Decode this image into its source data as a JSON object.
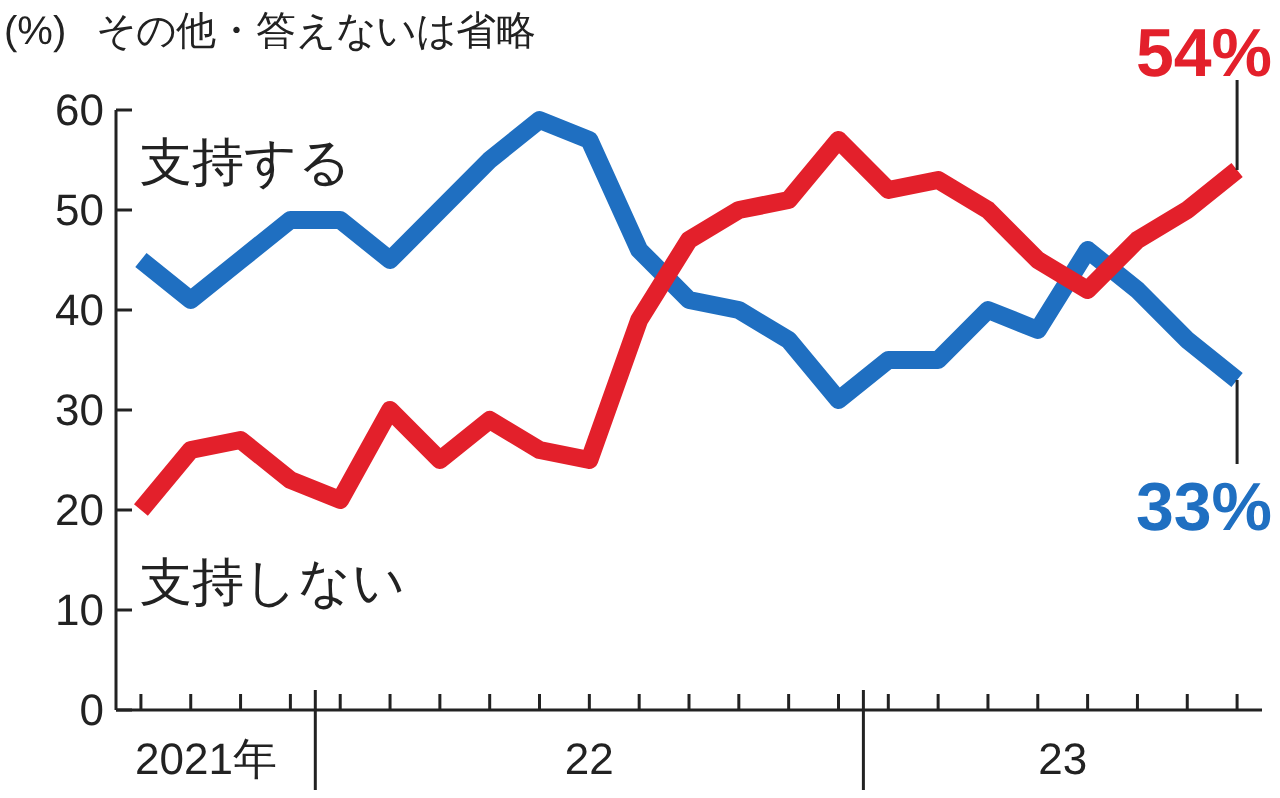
{
  "chart_data": {
    "type": "line",
    "ylabel": "(%)",
    "annotations": [
      "その他・答えないは省略",
      "2021年",
      "22",
      "23",
      "54%",
      "33%"
    ],
    "categories": [
      null,
      null,
      null,
      null,
      null,
      null,
      null,
      null,
      null,
      null,
      null,
      null,
      null,
      null,
      null,
      null,
      null,
      null,
      null,
      null,
      null,
      null,
      null
    ],
    "series": [
      {
        "name": "支持する",
        "color": "#1f6fc1",
        "values": [
          45,
          41,
          45,
          49,
          49,
          45,
          50,
          55,
          59,
          57,
          46,
          41,
          40,
          37,
          31,
          35,
          35,
          40,
          38,
          46,
          42,
          37,
          33
        ]
      },
      {
        "name": "支持しない",
        "color": "#e3202b",
        "values": [
          20,
          26,
          27,
          23,
          21,
          30,
          25,
          29,
          26,
          25,
          39,
          47,
          50,
          51,
          57,
          52,
          53,
          50,
          45,
          42,
          47,
          50,
          54
        ]
      }
    ],
    "ylim": [
      0,
      60
    ],
    "yticks": [
      0,
      10,
      20,
      30,
      40,
      50,
      60
    ],
    "grid": false,
    "marker": "none",
    "line_style": "solid"
  }
}
